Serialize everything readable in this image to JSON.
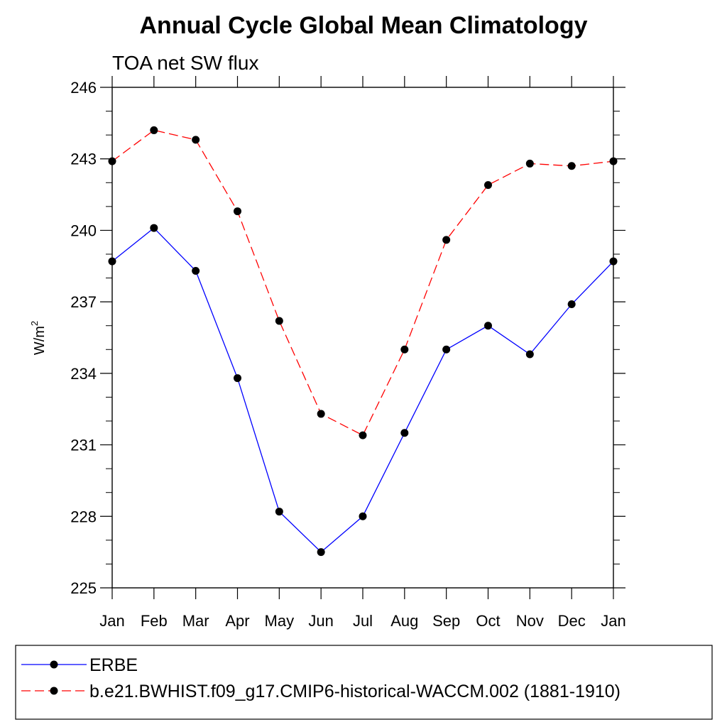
{
  "chart_data": {
    "type": "line",
    "title": "Annual Cycle Global Mean Climatology",
    "subtitle": "TOA net SW flux",
    "ylabel_base": "W/m",
    "ylabel_sup": "2",
    "xlabel": "",
    "categories": [
      "Jan",
      "Feb",
      "Mar",
      "Apr",
      "May",
      "Jun",
      "Jul",
      "Aug",
      "Sep",
      "Oct",
      "Nov",
      "Dec",
      "Jan"
    ],
    "ylim": [
      225,
      246
    ],
    "yticks": [
      225,
      228,
      231,
      234,
      237,
      240,
      243,
      246
    ],
    "grid": false,
    "legend_position": "bottom",
    "series": [
      {
        "name": "ERBE",
        "color": "#0000ff",
        "dash": "solid",
        "values": [
          238.7,
          240.1,
          238.3,
          233.8,
          228.2,
          226.5,
          228.0,
          231.5,
          235.0,
          236.0,
          234.8,
          236.9,
          238.7
        ]
      },
      {
        "name": "b.e21.BWHIST.f09_g17.CMIP6-historical-WACCM.002 (1881-1910)",
        "color": "#ff0000",
        "dash": "dashed",
        "values": [
          242.9,
          244.2,
          243.8,
          240.8,
          236.2,
          232.3,
          231.4,
          235.0,
          239.6,
          241.9,
          242.8,
          242.7,
          242.9
        ]
      }
    ]
  }
}
